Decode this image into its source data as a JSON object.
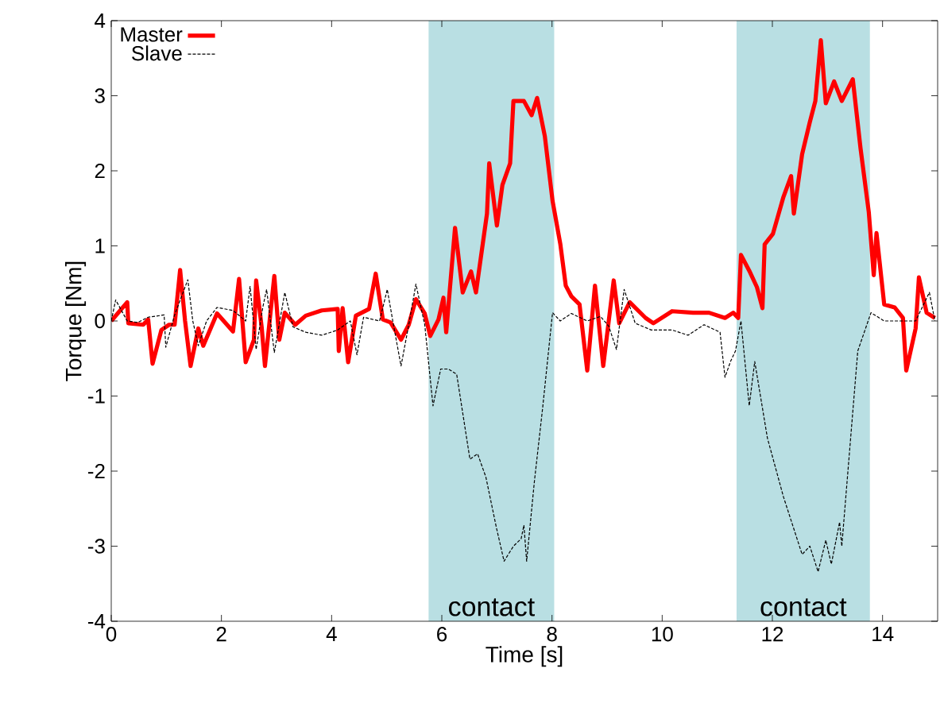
{
  "chart_data": {
    "type": "line",
    "xlabel": "Time [s]",
    "ylabel": "Torque [Nm]",
    "xlim": [
      0,
      15
    ],
    "ylim": [
      -4,
      4
    ],
    "xticks": [
      0,
      2,
      4,
      6,
      8,
      10,
      12,
      14
    ],
    "yticks": [
      -4,
      -3,
      -2,
      -1,
      0,
      1,
      2,
      3,
      4
    ],
    "grid": false,
    "legend": "top left",
    "bands": [
      {
        "axis": "x",
        "from": 5.76,
        "to": 8.04,
        "label": "contact",
        "color": "#b9dfe3"
      },
      {
        "axis": "x",
        "from": 11.35,
        "to": 13.77,
        "label": "contact",
        "color": "#b9dfe3"
      }
    ],
    "series": [
      {
        "name": "Master",
        "color": "#ff0000",
        "line_style": "solid",
        "x": [
          0,
          0.29,
          0.31,
          0.58,
          0.67,
          0.75,
          0.91,
          1.05,
          1.15,
          1.25,
          1.34,
          1.44,
          1.58,
          1.67,
          1.92,
          2.21,
          2.32,
          2.44,
          2.59,
          2.63,
          2.73,
          2.79,
          2.96,
          3.05,
          3.15,
          3.34,
          3.53,
          3.82,
          4.11,
          4.13,
          4.2,
          4.3,
          4.44,
          4.68,
          4.8,
          4.93,
          5.07,
          5.26,
          5.4,
          5.53,
          5.69,
          5.79,
          5.94,
          6.03,
          6.08,
          6.24,
          6.38,
          6.53,
          6.62,
          6.82,
          6.86,
          7.0,
          7.1,
          7.24,
          7.3,
          7.49,
          7.63,
          7.73,
          7.87,
          8.01,
          8.15,
          8.25,
          8.35,
          8.5,
          8.64,
          8.78,
          8.93,
          9.12,
          9.22,
          9.41,
          9.7,
          9.84,
          10.18,
          10.56,
          10.85,
          11.14,
          11.29,
          11.38,
          11.43,
          11.58,
          11.72,
          11.82,
          11.86,
          12.01,
          12.2,
          12.34,
          12.39,
          12.54,
          12.68,
          12.78,
          12.88,
          12.97,
          13.12,
          13.26,
          13.46,
          13.6,
          13.75,
          13.84,
          13.89,
          14.03,
          14.22,
          14.37,
          14.43,
          14.6,
          14.66,
          14.8,
          14.95
        ],
        "values": [
          0,
          0.25,
          -0.03,
          -0.05,
          0.02,
          -0.57,
          -0.12,
          -0.05,
          -0.05,
          0.68,
          0,
          -0.6,
          -0.1,
          -0.33,
          0.1,
          -0.14,
          0.56,
          -0.55,
          -0.25,
          0.54,
          -0.08,
          -0.6,
          0.6,
          -0.25,
          0.11,
          -0.05,
          0.07,
          0.14,
          0.16,
          -0.4,
          0.17,
          -0.55,
          0.07,
          0.16,
          0.63,
          0.02,
          -0.02,
          -0.25,
          -0.05,
          0.29,
          0.1,
          -0.2,
          0.02,
          0.31,
          -0.15,
          1.24,
          0.38,
          0.66,
          0.38,
          1.43,
          2.1,
          1.27,
          1.81,
          2.1,
          2.93,
          2.93,
          2.74,
          2.97,
          2.46,
          1.6,
          1.03,
          0.47,
          0.33,
          0.22,
          -0.66,
          0.47,
          -0.6,
          0.54,
          -0.03,
          0.25,
          0.04,
          -0.03,
          0.13,
          0.11,
          0.11,
          0.04,
          0.11,
          0.04,
          0.88,
          0.67,
          0.45,
          0.17,
          1.02,
          1.16,
          1.65,
          1.93,
          1.43,
          2.22,
          2.65,
          2.93,
          3.74,
          2.9,
          3.19,
          2.93,
          3.22,
          2.3,
          1.45,
          0.61,
          1.17,
          0.22,
          0.18,
          0.04,
          -0.66,
          -0.1,
          0.58,
          0.11,
          0.04
        ]
      },
      {
        "name": "Slave",
        "color": "#000000",
        "line_style": "dashed",
        "x": [
          0,
          0.08,
          0.29,
          0.48,
          0.67,
          0.96,
          0.99,
          1.15,
          1.39,
          1.48,
          1.58,
          1.73,
          1.92,
          2.21,
          2.44,
          2.52,
          2.63,
          2.75,
          2.82,
          2.96,
          3.15,
          3.3,
          3.53,
          3.82,
          4.11,
          4.34,
          4.46,
          4.58,
          4.87,
          5.01,
          5.11,
          5.26,
          5.4,
          5.53,
          5.69,
          5.84,
          5.98,
          6.12,
          6.27,
          6.51,
          6.65,
          6.8,
          6.99,
          7.13,
          7.3,
          7.44,
          7.49,
          7.54,
          7.68,
          7.83,
          7.95,
          8.01,
          8.15,
          8.35,
          8.64,
          8.88,
          9.03,
          9.17,
          9.31,
          9.51,
          9.8,
          10.18,
          10.47,
          10.76,
          11.05,
          11.14,
          11.24,
          11.33,
          11.43,
          11.58,
          11.68,
          11.91,
          12.2,
          12.54,
          12.68,
          12.83,
          12.97,
          13.07,
          13.22,
          13.26,
          13.55,
          13.79,
          14.03,
          14.32,
          14.6,
          14.85,
          14.95
        ],
        "values": [
          0,
          0.28,
          0,
          -0.02,
          0.05,
          0.08,
          -0.35,
          0.08,
          0.55,
          0,
          -0.33,
          0,
          0.18,
          0.14,
          0,
          0.46,
          -0.38,
          0.18,
          0.42,
          -0.42,
          0.38,
          -0.08,
          -0.15,
          -0.19,
          -0.12,
          0,
          -0.45,
          0.05,
          0,
          0.42,
          0,
          -0.6,
          -0.05,
          0.49,
          -0.05,
          -1.13,
          -0.64,
          -0.64,
          -0.71,
          -1.84,
          -1.77,
          -2.08,
          -2.75,
          -3.2,
          -3.0,
          -2.9,
          -2.72,
          -3.2,
          -2.14,
          -1.16,
          -0.31,
          0.11,
          0,
          0.1,
          0,
          0.06,
          -0.07,
          -0.38,
          0.42,
          -0.03,
          -0.12,
          -0.12,
          -0.19,
          -0.05,
          -0.15,
          -0.75,
          -0.54,
          -0.4,
          0,
          -1.13,
          -0.54,
          -1.56,
          -2.34,
          -3.11,
          -3.0,
          -3.34,
          -2.92,
          -3.24,
          -2.68,
          -3.0,
          -0.4,
          0.11,
          0,
          0,
          0,
          0.38,
          0
        ]
      }
    ]
  }
}
